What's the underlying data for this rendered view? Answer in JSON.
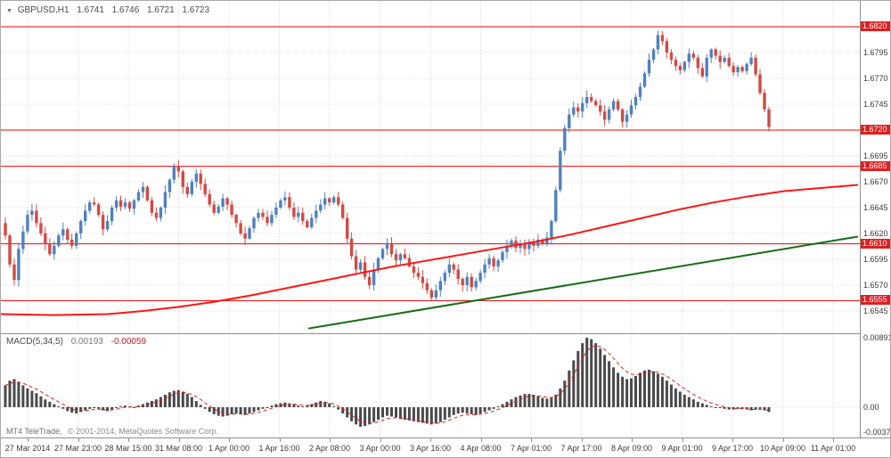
{
  "symbol_bar": {
    "symbol": "GBPUSD,H1",
    "open": "1.6741",
    "high": "1.6746",
    "low": "1.6721",
    "close": "1.6723"
  },
  "macd_panel": {
    "label": "MACD(5,34,5)",
    "main_value": "0.00193",
    "signal_value": "-0.00059"
  },
  "watermark": {
    "brand": "MT4 TeleTrade,",
    "copyright": "© 2001-2014, MetaQuotes Software Corp."
  },
  "colors": {
    "bull": "#4f81bd",
    "bear": "#d24a43",
    "level": "#f50000",
    "ma": "#ff1414",
    "trend": "#176b17",
    "histogram": "#4a4a4a",
    "signal": "#e02020",
    "badge_bg": "#e01f1f",
    "grid": "#d9d9d9",
    "axis_text": "#3a3a3a"
  },
  "price_axis": {
    "ticks": [
      "1.6795",
      "1.6770",
      "1.6745",
      "1.6695",
      "1.6670",
      "1.6645",
      "1.6620",
      "1.6595",
      "1.6570",
      "1.6545"
    ],
    "level_badges": [
      "1.6820",
      "1.6720",
      "1.6685",
      "1.6610",
      "1.6555"
    ]
  },
  "macd_axis": {
    "labels": [
      "0.00891",
      "0.00",
      "-0.00375"
    ]
  },
  "time_axis": {
    "labels": [
      "27 Mar 2014",
      "27 Mar 23:00",
      "28 Mar 15:00",
      "31 Mar 08:00",
      "1 Apr 00:00",
      "1 Apr 16:00",
      "2 Apr 08:00",
      "3 Apr 00:00",
      "3 Apr 16:00",
      "4 Apr 08:00",
      "7 Apr 01:00",
      "7 Apr 17:00",
      "8 Apr 09:00",
      "9 Apr 01:00",
      "9 Apr 17:00",
      "10 Apr 09:00",
      "11 Apr 01:00"
    ]
  },
  "chart_data": [
    {
      "type": "candlestick",
      "symbol": "GBPUSD",
      "timeframe": "H1",
      "current_ohlc": {
        "open": 1.6741,
        "high": 1.6746,
        "low": 1.6721,
        "close": 1.6723
      },
      "y_axis": {
        "min": 1.6524,
        "max": 1.6832
      },
      "grid_prices": [
        1.682,
        1.6795,
        1.677,
        1.6745,
        1.672,
        1.6695,
        1.667,
        1.6645,
        1.662,
        1.6595,
        1.657,
        1.6545
      ],
      "levels": [
        1.682,
        1.672,
        1.6685,
        1.661,
        1.6555
      ],
      "open_first": 1.663,
      "closes": [
        1.6618,
        1.659,
        1.6575,
        1.6605,
        1.6622,
        1.6638,
        1.6642,
        1.663,
        1.662,
        1.661,
        1.66,
        1.6608,
        1.6618,
        1.6624,
        1.6614,
        1.6608,
        1.662,
        1.6632,
        1.6642,
        1.665,
        1.6648,
        1.6638,
        1.6624,
        1.6632,
        1.6645,
        1.6652,
        1.6646,
        1.665,
        1.6644,
        1.6652,
        1.666,
        1.6665,
        1.6652,
        1.664,
        1.6635,
        1.6645,
        1.666,
        1.6672,
        1.6685,
        1.668,
        1.6665,
        1.6658,
        1.667,
        1.6678,
        1.6668,
        1.6658,
        1.6648,
        1.664,
        1.6646,
        1.6654,
        1.6648,
        1.6638,
        1.663,
        1.662,
        1.6615,
        1.6625,
        1.6635,
        1.664,
        1.6636,
        1.663,
        1.6638,
        1.6645,
        1.6652,
        1.6655,
        1.6645,
        1.6636,
        1.664,
        1.6632,
        1.6626,
        1.6635,
        1.6642,
        1.6648,
        1.6654,
        1.665,
        1.6655,
        1.6648,
        1.6635,
        1.6615,
        1.6598,
        1.6585,
        1.6592,
        1.6578,
        1.657,
        1.6585,
        1.6596,
        1.6605,
        1.661,
        1.66,
        1.6594,
        1.66,
        1.6596,
        1.6588,
        1.6582,
        1.6578,
        1.6572,
        1.6565,
        1.6558,
        1.6565,
        1.6574,
        1.6582,
        1.659,
        1.6585,
        1.6576,
        1.657,
        1.6578,
        1.6568,
        1.6574,
        1.6582,
        1.659,
        1.6596,
        1.6588,
        1.6594,
        1.6602,
        1.6608,
        1.6613,
        1.6606,
        1.661,
        1.6605,
        1.6612,
        1.6608,
        1.6614,
        1.661,
        1.6616,
        1.6632,
        1.6662,
        1.67,
        1.6722,
        1.6735,
        1.6742,
        1.6738,
        1.6746,
        1.6752,
        1.6748,
        1.6744,
        1.6738,
        1.673,
        1.674,
        1.6748,
        1.674,
        1.6728,
        1.6735,
        1.6744,
        1.6752,
        1.6762,
        1.6775,
        1.6788,
        1.6798,
        1.6812,
        1.6806,
        1.6795,
        1.6788,
        1.6782,
        1.6778,
        1.6786,
        1.6794,
        1.679,
        1.678,
        1.6772,
        1.679,
        1.6798,
        1.6792,
        1.6786,
        1.679,
        1.6782,
        1.6776,
        1.6781,
        1.6777,
        1.6784,
        1.679,
        1.6774,
        1.6756,
        1.674,
        1.6723
      ],
      "moving_average": {
        "points": [
          [
            0,
            1.6542
          ],
          [
            60,
            1.6541
          ],
          [
            120,
            1.6542
          ],
          [
            160,
            1.6545
          ],
          [
            200,
            1.6549
          ],
          [
            240,
            1.6554
          ],
          [
            280,
            1.656
          ],
          [
            320,
            1.6567
          ],
          [
            360,
            1.6574
          ],
          [
            400,
            1.6581
          ],
          [
            440,
            1.6588
          ],
          [
            480,
            1.6594
          ],
          [
            520,
            1.66
          ],
          [
            560,
            1.6606
          ],
          [
            600,
            1.6612
          ],
          [
            640,
            1.6619
          ],
          [
            680,
            1.6627
          ],
          [
            720,
            1.6635
          ],
          [
            760,
            1.6643
          ],
          [
            800,
            1.665
          ],
          [
            840,
            1.6656
          ],
          [
            880,
            1.6661
          ],
          [
            920,
            1.6664
          ],
          [
            962,
            1.6667
          ]
        ]
      },
      "trendline": {
        "from": [
          345,
          1.6528
        ],
        "to": [
          962,
          1.6617
        ]
      }
    },
    {
      "type": "macd",
      "label": "MACD(5,34,5)",
      "value_main": 0.00193,
      "value_signal": -0.00059,
      "scale": {
        "max": 0.00891,
        "zero": 0.0,
        "min": -0.00375
      },
      "values": [
        0.0028,
        0.0034,
        0.0036,
        0.0032,
        0.0028,
        0.0024,
        0.0021,
        0.0018,
        0.0014,
        0.001,
        0.0007,
        0.0004,
        0.0001,
        -0.0002,
        -0.0005,
        -0.0007,
        -0.0008,
        -0.0006,
        -0.0004,
        -0.0002,
        -0.0001,
        -0.0002,
        -0.0004,
        -0.0005,
        -0.0003,
        -0.0001,
        0.0001,
        0.0002,
        0.0001,
        0.0,
        0.0002,
        0.0004,
        0.0006,
        0.0008,
        0.001,
        0.0013,
        0.0016,
        0.0019,
        0.0021,
        0.0022,
        0.002,
        0.0017,
        0.0013,
        0.0008,
        0.0003,
        -0.0002,
        -0.0006,
        -0.0009,
        -0.0011,
        -0.0012,
        -0.0011,
        -0.0009,
        -0.0008,
        -0.0009,
        -0.001,
        -0.0008,
        -0.0006,
        -0.0004,
        -0.0002,
        0.0,
        0.0002,
        0.0004,
        0.0005,
        0.0006,
        0.0005,
        0.0004,
        0.0002,
        0.0001,
        0.0002,
        0.0004,
        0.0006,
        0.0008,
        0.0007,
        0.0005,
        0.0001,
        -0.0003,
        -0.0008,
        -0.0013,
        -0.0018,
        -0.0022,
        -0.0025,
        -0.0024,
        -0.0022,
        -0.0019,
        -0.0016,
        -0.0013,
        -0.0011,
        -0.0012,
        -0.0013,
        -0.0015,
        -0.0016,
        -0.0017,
        -0.0018,
        -0.0019,
        -0.002,
        -0.0021,
        -0.0022,
        -0.0021,
        -0.0019,
        -0.0016,
        -0.0013,
        -0.001,
        -0.0008,
        -0.0007,
        -0.0008,
        -0.0009,
        -0.001,
        -0.0008,
        -0.0006,
        -0.0004,
        -0.0002,
        0.0001,
        0.0004,
        0.0007,
        0.001,
        0.0013,
        0.0015,
        0.0017,
        0.0017,
        0.0016,
        0.0014,
        0.0012,
        0.0011,
        0.0012,
        0.0016,
        0.0024,
        0.0034,
        0.0047,
        0.006,
        0.0072,
        0.0082,
        0.0089,
        0.0087,
        0.0082,
        0.0075,
        0.0067,
        0.0059,
        0.0051,
        0.0044,
        0.0039,
        0.0036,
        0.0037,
        0.004,
        0.0044,
        0.0047,
        0.0048,
        0.0046,
        0.0043,
        0.0039,
        0.0034,
        0.0029,
        0.0024,
        0.002,
        0.0016,
        0.0013,
        0.001,
        0.0007,
        0.0005,
        0.0003,
        0.0001,
        0.0,
        -0.0001,
        -0.0002,
        -0.0003,
        -0.0003,
        -0.0002,
        -0.0002,
        -0.0003,
        -0.0004,
        -0.0003,
        -0.0002,
        -0.0004,
        -0.0006
      ]
    }
  ]
}
